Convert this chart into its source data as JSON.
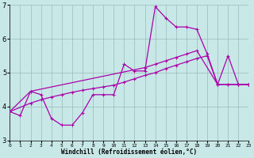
{
  "bg_color": "#c8e8e8",
  "line_color": "#aa00aa",
  "grid_color": "#99bbbb",
  "xlabel": "Windchill (Refroidissement éolien,°C)",
  "xlim": [
    0,
    23
  ],
  "ylim": [
    3,
    7
  ],
  "yticks": [
    3,
    4,
    5,
    6,
    7
  ],
  "xticks": [
    0,
    1,
    2,
    3,
    4,
    5,
    6,
    7,
    8,
    9,
    10,
    11,
    12,
    13,
    14,
    15,
    16,
    17,
    18,
    19,
    20,
    21,
    22,
    23
  ],
  "s1_x": [
    0,
    1,
    2,
    3,
    4,
    5,
    6,
    7,
    8,
    9,
    10,
    11,
    12,
    13,
    14,
    15,
    16,
    17,
    18,
    19,
    20,
    21,
    22,
    23
  ],
  "s1_y": [
    3.85,
    3.73,
    4.45,
    4.35,
    3.65,
    3.45,
    3.45,
    3.82,
    4.35,
    4.35,
    4.35,
    5.25,
    5.05,
    5.05,
    6.95,
    6.62,
    6.35,
    6.35,
    6.28,
    5.55,
    4.65,
    5.5,
    4.65,
    4.65
  ],
  "s2_x": [
    0,
    2,
    13,
    14,
    15,
    16,
    17,
    18,
    20,
    21,
    22,
    23
  ],
  "s2_y": [
    3.85,
    4.45,
    5.15,
    5.25,
    5.35,
    5.45,
    5.55,
    5.65,
    4.65,
    4.65,
    4.65,
    4.65
  ],
  "s3_x": [
    0,
    2,
    3,
    4,
    5,
    6,
    7,
    8,
    9,
    10,
    11,
    12,
    13,
    14,
    15,
    16,
    17,
    18,
    19,
    20,
    21,
    22,
    23
  ],
  "s3_y": [
    3.85,
    4.1,
    4.2,
    4.28,
    4.35,
    4.42,
    4.48,
    4.53,
    4.58,
    4.63,
    4.72,
    4.82,
    4.92,
    5.0,
    5.12,
    5.22,
    5.32,
    5.42,
    5.5,
    4.65,
    4.65,
    4.65,
    4.65
  ]
}
